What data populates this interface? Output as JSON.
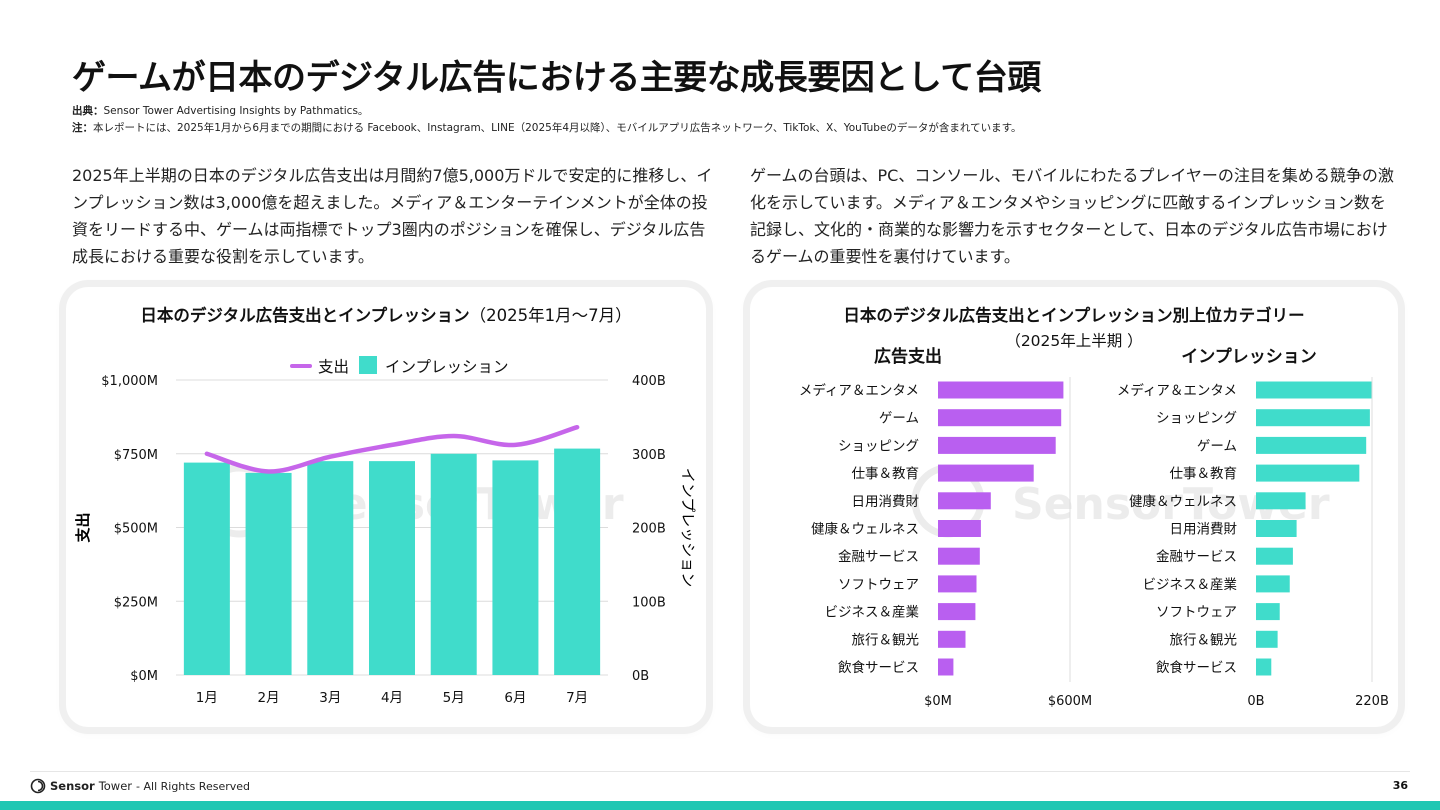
{
  "header": {
    "title": "ゲームが日本のデジタル広告における主要な成長要因として台頭",
    "source_label": "出典：",
    "source_text": "Sensor Tower Advertising Insights by Pathmatics。",
    "note_label": "注：",
    "note_text": "本レポートには、2025年1月から6月までの期間における Facebook、Instagram、LINE（2025年4月以降）、モバイルアプリ広告ネットワーク、TikTok、X、YouTubeのデータが含まれています。"
  },
  "left_paragraph": "2025年上半期の日本のデジタル広告支出は月間約7億5,000万ドルで安定的に推移し、インプレッション数は3,000億を超えました。メディア＆エンターテインメントが全体の投資をリードする中、ゲームは両指標でトップ3圏内のポジションを確保し、デジタル広告成長における重要な役割を示しています。",
  "right_paragraph": "ゲームの台頭は、PC、コンソール、モバイルにわたるプレイヤーの注目を集める競争の激化を示しています。メディア＆エンタメやショッピングに匹敵するインプレッション数を記録し、文化的・商業的な影響力を示すセクターとして、日本のデジタル広告市場におけるゲームの重要性を裏付けています。",
  "watermark": "SensorTower",
  "left_card": {
    "title": "日本のデジタル広告支出とインプレッション",
    "title_suffix": "（2025年1月〜7月）"
  },
  "right_card": {
    "title": "日本のデジタル広告支出とインプレッション別上位カテゴリー",
    "subtitle": "（2025年上半期 ）"
  },
  "chart_data": [
    {
      "type": "bar",
      "title": "日本のデジタル広告支出とインプレッション（2025年1月〜7月）",
      "categories": [
        "1月",
        "2月",
        "3月",
        "4月",
        "5月",
        "6月",
        "7月"
      ],
      "series": [
        {
          "name": "インプレッション",
          "type": "bar",
          "axis": "right",
          "values": [
            288,
            274,
            290,
            290,
            300,
            291,
            307
          ],
          "color": "#40dccb"
        },
        {
          "name": "支出",
          "type": "line",
          "axis": "left",
          "values": [
            750,
            690,
            740,
            780,
            810,
            780,
            840
          ],
          "color": "#c666ea"
        }
      ],
      "ylabel": "支出",
      "y2label": "インプレッション",
      "ylim": [
        0,
        1000
      ],
      "y2lim": [
        0,
        400
      ],
      "yticks": [
        "$0M",
        "$250M",
        "$500M",
        "$750M",
        "$1,000M"
      ],
      "y2ticks": [
        "0B",
        "100B",
        "200B",
        "300B",
        "400B"
      ],
      "legend": "top-center",
      "grid": "horizontal"
    },
    {
      "type": "bar",
      "orientation": "horizontal",
      "title": "広告支出",
      "categories": [
        "メディア＆エンタメ",
        "ゲーム",
        "ショッピング",
        "仕事＆教育",
        "日用消費財",
        "健康＆ウェルネス",
        "金融サービス",
        "ソフトウェア",
        "ビジネス＆産業",
        "旅行＆観光",
        "飲食サービス"
      ],
      "values": [
        570,
        560,
        535,
        435,
        240,
        195,
        190,
        175,
        170,
        125,
        70
      ],
      "xlim": [
        0,
        640
      ],
      "xticks": [
        "$0M",
        "$600M"
      ],
      "color": "#b95ff0"
    },
    {
      "type": "bar",
      "orientation": "horizontal",
      "title": "インプレッション",
      "categories": [
        "メディア＆エンタメ",
        "ショッピング",
        "ゲーム",
        "仕事＆教育",
        "健康＆ウェルネス",
        "日用消費財",
        "金融サービス",
        "ビジネス＆産業",
        "ソフトウェア",
        "旅行＆観光",
        "飲食サービス"
      ],
      "values": [
        221,
        216,
        209,
        196,
        94,
        77,
        70,
        64,
        45,
        41,
        29
      ],
      "xlim": [
        0,
        235
      ],
      "xticks": [
        "0B",
        "220B"
      ],
      "color": "#40dccb"
    }
  ],
  "footer": {
    "brand_a": "Sensor",
    "brand_b": "Tower",
    "rights": "- All Rights Reserved",
    "page_number": "36"
  }
}
